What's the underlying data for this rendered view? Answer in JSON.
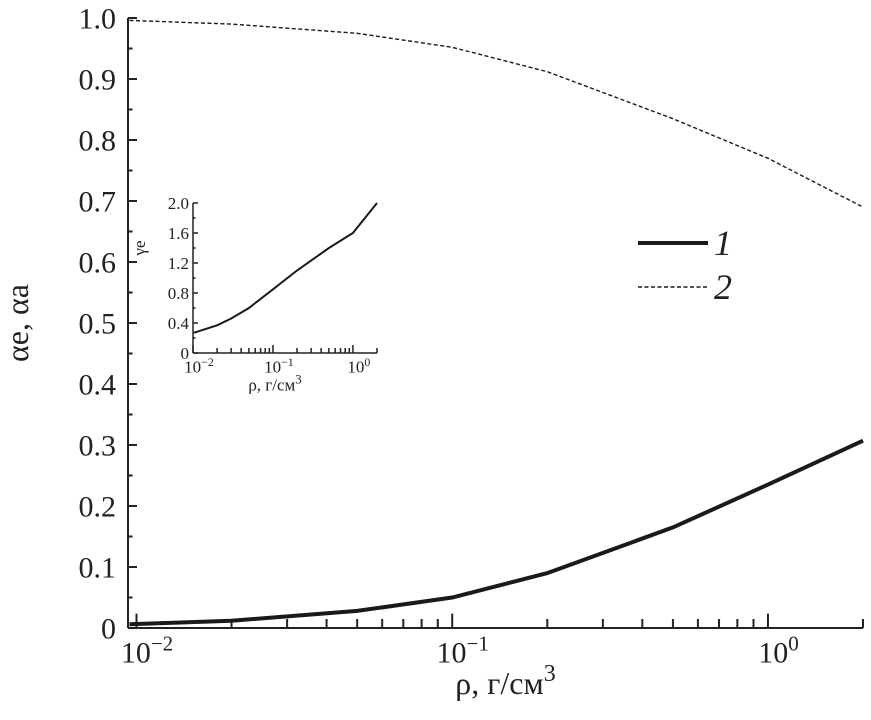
{
  "chart_data": [
    {
      "type": "line",
      "xscale": "log",
      "xlabel": "ρ, г/см",
      "xlabel_sup": "3",
      "ylabel": "αe, αa",
      "xlim": [
        0.0094,
        2.0
      ],
      "ylim": [
        0,
        1.0
      ],
      "x_ticks": [
        {
          "base": "10",
          "exp": "−2",
          "value": 0.01
        },
        {
          "base": "10",
          "exp": "−1",
          "value": 0.1
        },
        {
          "base": "10",
          "exp": "0",
          "value": 1
        }
      ],
      "y_ticks": [
        "0",
        "0.1",
        "0.2",
        "0.3",
        "0.4",
        "0.5",
        "0.6",
        "0.7",
        "0.8",
        "0.9",
        "1.0"
      ],
      "legend_placement": "center-right",
      "series": [
        {
          "name": "1",
          "style": "solid-thick",
          "x": [
            0.0095,
            0.02,
            0.05,
            0.1,
            0.2,
            0.5,
            1.0,
            2.0
          ],
          "y": [
            0.006,
            0.012,
            0.028,
            0.05,
            0.09,
            0.165,
            0.235,
            0.307
          ]
        },
        {
          "name": "2",
          "style": "dashed",
          "x": [
            0.0095,
            0.02,
            0.05,
            0.1,
            0.2,
            0.5,
            1.0,
            2.0
          ],
          "y": [
            0.996,
            0.99,
            0.975,
            0.952,
            0.912,
            0.835,
            0.77,
            0.69
          ]
        }
      ]
    },
    {
      "type": "line",
      "xscale": "log",
      "xlabel": "ρ, г/см",
      "xlabel_sup": "3",
      "ylabel": "γe",
      "xlim": [
        0.01,
        2.0
      ],
      "ylim": [
        0,
        2.0
      ],
      "x_ticks": [
        {
          "base": "10",
          "exp": "−2",
          "value": 0.01
        },
        {
          "base": "10",
          "exp": "−1",
          "value": 0.1
        },
        {
          "base": "10",
          "exp": "0",
          "value": 1
        }
      ],
      "y_ticks": [
        "0",
        "0.4",
        "0.8",
        "1.2",
        "1.6",
        "2.0"
      ],
      "series": [
        {
          "x": [
            0.0102,
            0.02,
            0.03,
            0.05,
            0.1,
            0.2,
            0.5,
            1.0,
            2.0
          ],
          "y": [
            0.27,
            0.37,
            0.46,
            0.6,
            0.85,
            1.1,
            1.4,
            1.6,
            2.0
          ]
        }
      ]
    }
  ]
}
